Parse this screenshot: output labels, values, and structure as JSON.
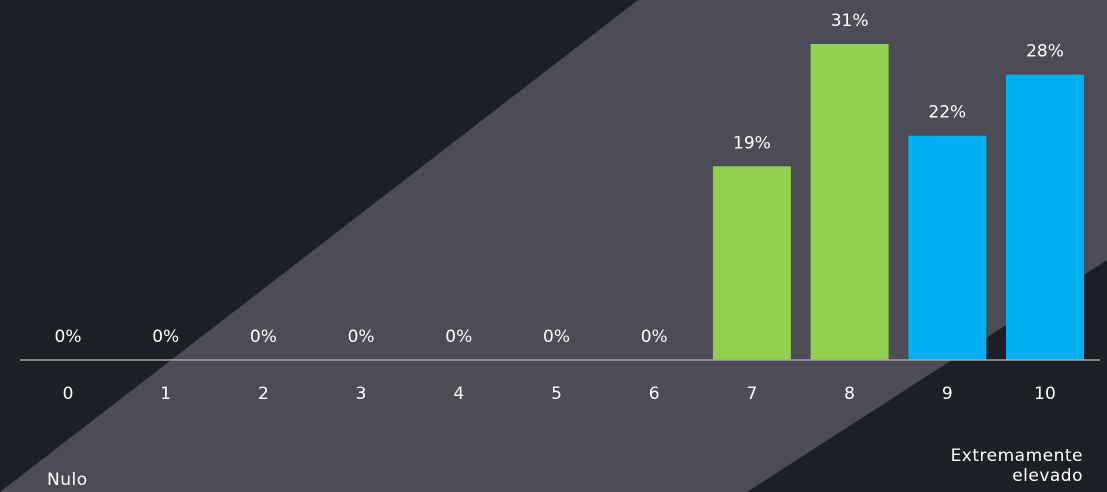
{
  "colors": {
    "background": "#1d1f27",
    "band": "#4b4c55",
    "green": "#92d050",
    "blue": "#00b0f0",
    "text": "#ffffff",
    "axis": "#a6a6a6"
  },
  "scale_labels": {
    "min": "Nulo",
    "max_line1": "Extremamente",
    "max_line2": "elevado"
  },
  "chart_data": {
    "type": "bar",
    "title": "",
    "xlabel": "",
    "ylabel": "",
    "categories": [
      "0",
      "1",
      "2",
      "3",
      "4",
      "5",
      "6",
      "7",
      "8",
      "9",
      "10"
    ],
    "values": [
      0,
      0,
      0,
      0,
      0,
      0,
      0,
      19,
      31,
      22,
      28
    ],
    "data_labels": [
      "0%",
      "0%",
      "0%",
      "0%",
      "0%",
      "0%",
      "0%",
      "19%",
      "31%",
      "22%",
      "28%"
    ],
    "bar_colors": [
      "#92d050",
      "#92d050",
      "#92d050",
      "#92d050",
      "#92d050",
      "#92d050",
      "#92d050",
      "#92d050",
      "#92d050",
      "#00b0f0",
      "#00b0f0"
    ],
    "ylim": [
      0,
      31
    ],
    "grid": false,
    "legend": "none"
  }
}
